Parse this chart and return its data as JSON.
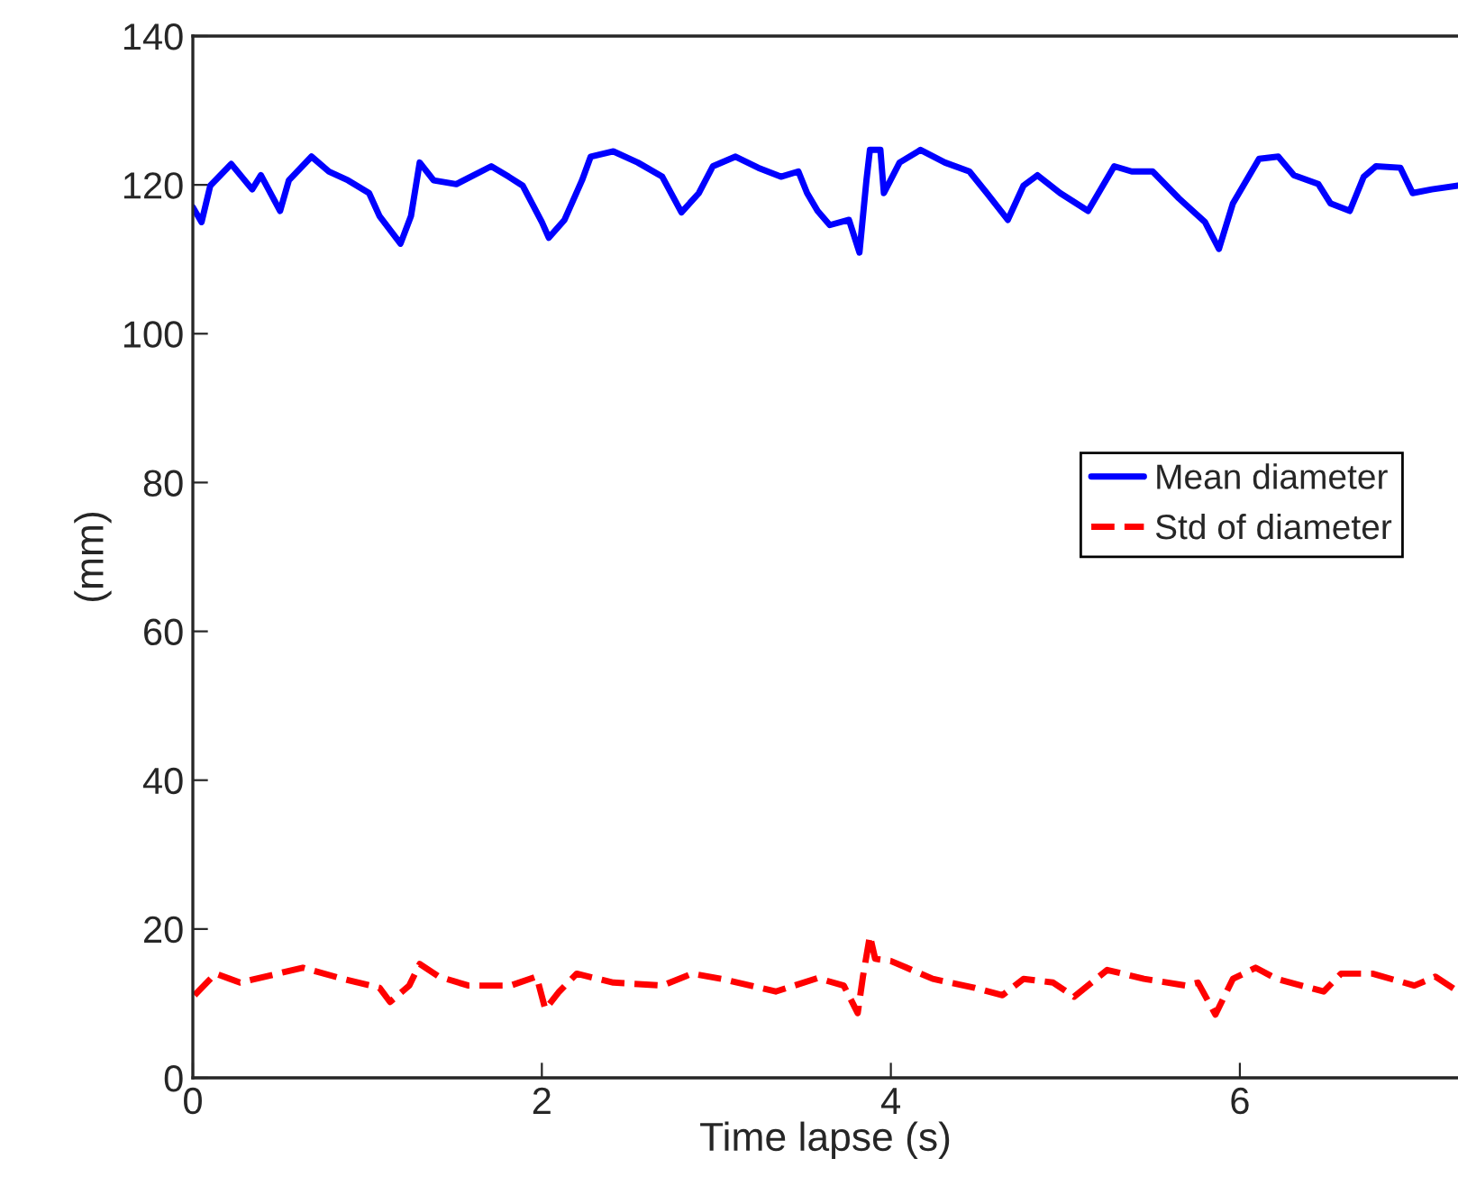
{
  "chart_data": {
    "type": "line",
    "xlabel": "Time lapse (s)",
    "ylabel": "(mm)",
    "xlim": [
      0,
      7.25
    ],
    "xticks": [
      0,
      2,
      4,
      6
    ],
    "ylim": [
      0,
      140
    ],
    "yticks": [
      0,
      20,
      40,
      60,
      80,
      100,
      120,
      140
    ],
    "grid": false,
    "legend": "right",
    "series": [
      {
        "name": "Mean diameter",
        "color": "#0000ff",
        "line_style": "solid",
        "x": [
          0,
          0.05,
          0.1,
          0.22,
          0.34,
          0.39,
          0.5,
          0.55,
          0.68,
          0.78,
          0.89,
          1.01,
          1.07,
          1.19,
          1.25,
          1.3,
          1.38,
          1.51,
          1.71,
          1.81,
          1.89,
          2.0,
          2.04,
          2.13,
          2.23,
          2.28,
          2.41,
          2.55,
          2.69,
          2.8,
          2.9,
          2.98,
          3.11,
          3.24,
          3.37,
          3.47,
          3.52,
          3.58,
          3.65,
          3.76,
          3.82,
          3.86,
          3.88,
          3.94,
          3.96,
          4.05,
          4.17,
          4.31,
          4.45,
          4.55,
          4.67,
          4.76,
          4.84,
          4.97,
          5.13,
          5.28,
          5.38,
          5.5,
          5.65,
          5.8,
          5.88,
          5.96,
          6.11,
          6.22,
          6.31,
          6.45,
          6.52,
          6.63,
          6.71,
          6.78,
          6.92,
          6.99,
          7.1,
          7.25
        ],
        "values": [
          117.0,
          115.0,
          119.9,
          122.8,
          119.4,
          121.3,
          116.5,
          120.6,
          123.8,
          121.8,
          120.6,
          118.9,
          115.8,
          112.1,
          115.8,
          123.0,
          120.6,
          120.1,
          122.5,
          121.1,
          119.9,
          115.0,
          112.9,
          115.3,
          120.6,
          123.8,
          124.5,
          123.0,
          121.1,
          116.3,
          118.9,
          122.5,
          123.8,
          122.3,
          121.1,
          121.8,
          118.9,
          116.5,
          114.6,
          115.3,
          110.9,
          120.6,
          124.7,
          124.7,
          118.9,
          123.0,
          124.7,
          123.0,
          121.8,
          118.9,
          115.3,
          119.9,
          121.3,
          118.9,
          116.5,
          122.5,
          121.8,
          121.8,
          118.2,
          115.0,
          111.4,
          117.5,
          123.5,
          123.8,
          121.3,
          120.1,
          117.5,
          116.5,
          121.1,
          122.5,
          122.3,
          118.9,
          119.4,
          119.9
        ]
      },
      {
        "name": "Std of diameter",
        "color": "#ff0000",
        "line_style": "dashed",
        "x": [
          0.01,
          0.13,
          0.27,
          0.63,
          0.86,
          1.07,
          1.13,
          1.24,
          1.3,
          1.41,
          1.58,
          1.82,
          1.97,
          2.02,
          2.1,
          2.2,
          2.41,
          2.69,
          2.86,
          3.03,
          3.34,
          3.58,
          3.73,
          3.81,
          3.84,
          3.88,
          3.91,
          4.0,
          4.09,
          4.24,
          4.48,
          4.64,
          4.76,
          4.93,
          5.05,
          5.24,
          5.45,
          5.69,
          5.76,
          5.86,
          5.96,
          6.09,
          6.21,
          6.48,
          6.58,
          6.76,
          7.0,
          7.12,
          7.25
        ],
        "values": [
          11.1,
          14.0,
          12.8,
          14.8,
          13.3,
          12.1,
          10.2,
          12.4,
          15.3,
          13.6,
          12.4,
          12.4,
          13.6,
          9.2,
          11.6,
          14.0,
          12.8,
          12.4,
          14.0,
          13.3,
          11.6,
          13.4,
          12.4,
          8.7,
          13.6,
          19.1,
          16.0,
          15.7,
          14.8,
          13.3,
          12.1,
          11.1,
          13.3,
          12.8,
          10.9,
          14.5,
          13.3,
          12.4,
          12.8,
          8.5,
          13.3,
          14.8,
          13.3,
          11.6,
          14.0,
          14.0,
          12.4,
          13.6,
          11.6
        ]
      }
    ]
  }
}
